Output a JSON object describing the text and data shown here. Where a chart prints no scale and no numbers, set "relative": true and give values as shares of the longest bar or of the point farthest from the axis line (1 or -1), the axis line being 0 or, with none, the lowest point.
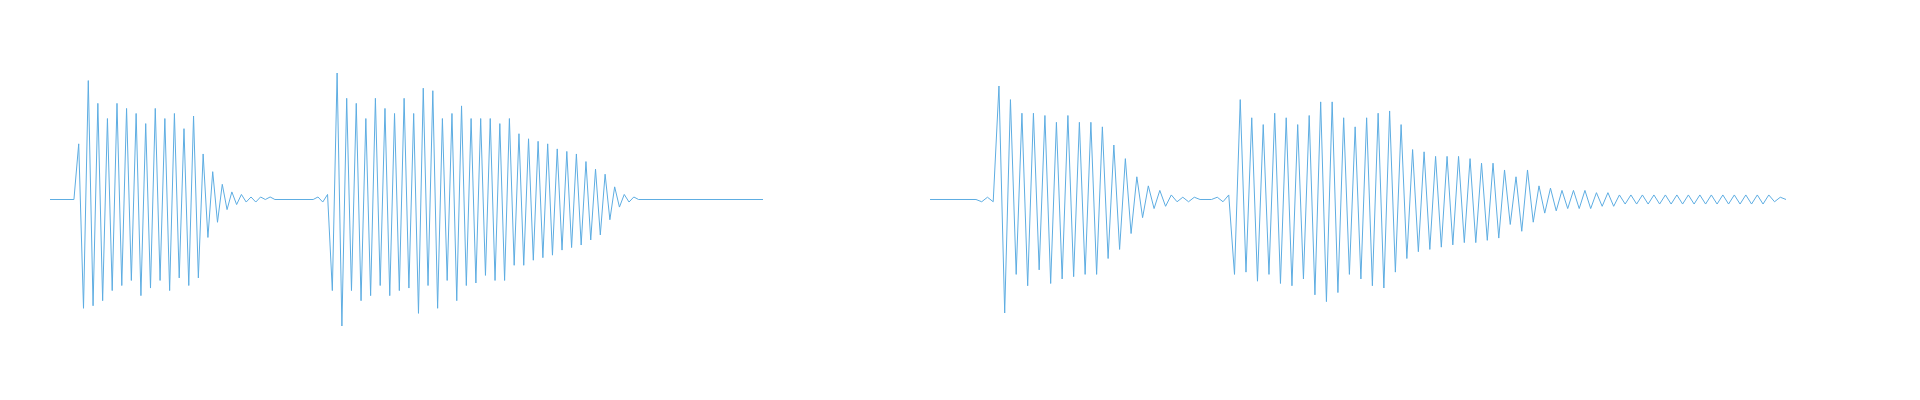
{
  "chart_data": [
    {
      "type": "line",
      "relative": true,
      "color": "#5dade2",
      "categories": [
        null,
        null,
        null,
        null,
        null,
        null,
        null,
        null,
        null,
        null,
        null,
        null,
        null,
        null,
        null,
        null,
        null,
        null,
        null,
        null,
        null,
        null,
        null,
        null,
        null,
        null,
        null,
        null,
        null,
        null,
        null,
        null,
        null,
        null,
        null,
        null,
        null,
        null,
        null,
        null,
        null,
        null,
        null,
        null,
        null,
        null,
        null,
        null,
        null,
        null,
        null,
        null,
        null,
        null,
        null,
        null,
        null,
        null,
        null,
        null,
        null,
        null,
        null,
        null,
        null,
        null,
        null,
        null,
        null,
        null,
        null,
        null,
        null,
        null,
        null,
        null,
        null,
        null,
        null,
        null,
        null,
        null,
        null,
        null,
        null,
        null,
        null,
        null,
        null,
        null,
        null,
        null,
        null,
        null,
        null,
        null,
        null,
        null,
        null,
        null,
        null,
        null,
        null,
        null,
        null,
        null,
        null,
        null,
        null,
        null,
        null,
        null,
        null,
        null,
        null,
        null,
        null,
        null,
        null,
        null,
        null,
        null,
        null,
        null,
        null,
        null,
        null,
        null,
        null,
        null,
        null,
        null,
        null,
        null,
        null,
        null,
        null,
        null,
        null,
        null,
        null,
        null,
        null,
        null,
        null,
        null,
        null,
        null,
        null,
        null
      ],
      "values": [
        0.5,
        0.5,
        0.5,
        0.5,
        0.5,
        0.5,
        0.72,
        0.07,
        0.97,
        0.08,
        0.88,
        0.1,
        0.82,
        0.14,
        0.88,
        0.16,
        0.86,
        0.18,
        0.84,
        0.12,
        0.8,
        0.15,
        0.86,
        0.18,
        0.82,
        0.14,
        0.84,
        0.19,
        0.78,
        0.16,
        0.83,
        0.19,
        0.68,
        0.35,
        0.61,
        0.41,
        0.56,
        0.46,
        0.53,
        0.48,
        0.52,
        0.49,
        0.51,
        0.49,
        0.51,
        0.5,
        0.51,
        0.5,
        0.5,
        0.5,
        0.5,
        0.5,
        0.5,
        0.5,
        0.5,
        0.5,
        0.51,
        0.49,
        0.52,
        0.14,
        1.0,
        0.0,
        0.9,
        0.14,
        0.88,
        0.1,
        0.82,
        0.12,
        0.9,
        0.16,
        0.86,
        0.12,
        0.84,
        0.14,
        0.9,
        0.15,
        0.84,
        0.05,
        0.94,
        0.16,
        0.93,
        0.07,
        0.82,
        0.18,
        0.84,
        0.1,
        0.87,
        0.16,
        0.82,
        0.17,
        0.82,
        0.2,
        0.82,
        0.18,
        0.8,
        0.18,
        0.82,
        0.24,
        0.76,
        0.24,
        0.74,
        0.26,
        0.73,
        0.27,
        0.72,
        0.28,
        0.7,
        0.3,
        0.69,
        0.31,
        0.68,
        0.32,
        0.65,
        0.34,
        0.62,
        0.36,
        0.6,
        0.42,
        0.55,
        0.47,
        0.52,
        0.49,
        0.51,
        0.5,
        0.5,
        0.5,
        0.5,
        0.5,
        0.5,
        0.5,
        0.5,
        0.5,
        0.5,
        0.5,
        0.5,
        0.5,
        0.5,
        0.5,
        0.5,
        0.5,
        0.5,
        0.5,
        0.5,
        0.5,
        0.5,
        0.5,
        0.5,
        0.5,
        0.5,
        0.5
      ]
    },
    {
      "type": "line",
      "relative": true,
      "color": "#5dade2",
      "categories": [
        null,
        null,
        null,
        null,
        null,
        null,
        null,
        null,
        null,
        null,
        null,
        null,
        null,
        null,
        null,
        null,
        null,
        null,
        null,
        null,
        null,
        null,
        null,
        null,
        null,
        null,
        null,
        null,
        null,
        null,
        null,
        null,
        null,
        null,
        null,
        null,
        null,
        null,
        null,
        null,
        null,
        null,
        null,
        null,
        null,
        null,
        null,
        null,
        null,
        null,
        null,
        null,
        null,
        null,
        null,
        null,
        null,
        null,
        null,
        null,
        null,
        null,
        null,
        null,
        null,
        null,
        null,
        null,
        null,
        null,
        null,
        null,
        null,
        null,
        null,
        null,
        null,
        null,
        null,
        null,
        null,
        null,
        null,
        null,
        null,
        null,
        null,
        null,
        null,
        null,
        null,
        null,
        null,
        null,
        null,
        null,
        null,
        null,
        null,
        null,
        null,
        null,
        null,
        null,
        null,
        null,
        null,
        null,
        null,
        null,
        null,
        null,
        null,
        null,
        null,
        null,
        null,
        null,
        null,
        null,
        null,
        null,
        null,
        null,
        null,
        null,
        null,
        null,
        null,
        null,
        null,
        null,
        null,
        null,
        null,
        null,
        null,
        null,
        null,
        null,
        null,
        null,
        null,
        null,
        null,
        null,
        null,
        null,
        null,
        null
      ],
      "values": [
        0.5,
        0.5,
        0.5,
        0.5,
        0.5,
        0.5,
        0.5,
        0.5,
        0.5,
        0.49,
        0.51,
        0.49,
        1.0,
        0.0,
        0.94,
        0.17,
        0.88,
        0.12,
        0.88,
        0.19,
        0.87,
        0.13,
        0.84,
        0.15,
        0.87,
        0.16,
        0.84,
        0.17,
        0.84,
        0.17,
        0.82,
        0.24,
        0.74,
        0.28,
        0.68,
        0.35,
        0.6,
        0.42,
        0.56,
        0.46,
        0.54,
        0.47,
        0.52,
        0.49,
        0.51,
        0.49,
        0.51,
        0.5,
        0.5,
        0.5,
        0.51,
        0.49,
        0.52,
        0.17,
        0.94,
        0.18,
        0.86,
        0.14,
        0.83,
        0.17,
        0.88,
        0.13,
        0.86,
        0.12,
        0.83,
        0.15,
        0.87,
        0.08,
        0.93,
        0.05,
        0.93,
        0.09,
        0.86,
        0.17,
        0.82,
        0.15,
        0.86,
        0.12,
        0.88,
        0.11,
        0.89,
        0.18,
        0.83,
        0.24,
        0.72,
        0.27,
        0.71,
        0.28,
        0.69,
        0.29,
        0.69,
        0.3,
        0.69,
        0.31,
        0.68,
        0.31,
        0.66,
        0.32,
        0.66,
        0.33,
        0.63,
        0.39,
        0.6,
        0.36,
        0.63,
        0.4,
        0.56,
        0.44,
        0.55,
        0.45,
        0.54,
        0.46,
        0.54,
        0.46,
        0.54,
        0.46,
        0.53,
        0.47,
        0.53,
        0.47,
        0.52,
        0.48,
        0.52,
        0.48,
        0.52,
        0.48,
        0.52,
        0.48,
        0.52,
        0.48,
        0.52,
        0.48,
        0.52,
        0.48,
        0.52,
        0.48,
        0.52,
        0.48,
        0.52,
        0.48,
        0.52,
        0.48,
        0.52,
        0.48,
        0.52,
        0.48,
        0.52,
        0.49,
        0.51,
        0.5
      ]
    }
  ]
}
